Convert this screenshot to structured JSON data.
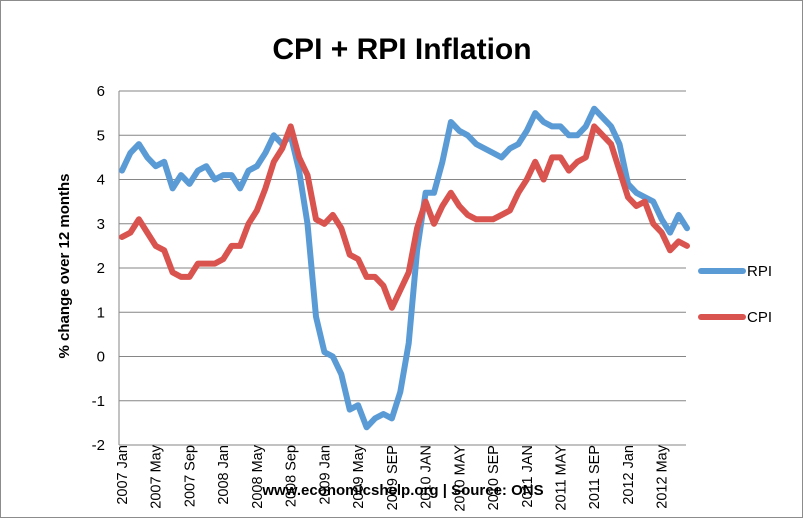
{
  "chart_data": {
    "type": "line",
    "title": "CPI + RPI Inflation",
    "ylabel": "% change over 12 months",
    "source": "www.economicshelp.org | Source: ONS",
    "ylim": [
      -2,
      6
    ],
    "yticks": [
      -2,
      -1,
      0,
      1,
      2,
      3,
      4,
      5,
      6
    ],
    "grid": true,
    "legend_position": "right",
    "x_tick_labels": [
      "2007 Jan",
      "2007 May",
      "2007 Sep",
      "2008 Jan",
      "2008 May",
      "2008 Sep",
      "2009 Jan",
      "2009 May",
      "2009 SEP",
      "2010 JAN",
      "2010 MAY",
      "2010 SEP",
      "2011 JAN",
      "2011 MAY",
      "2011 SEP",
      "2012 Jan",
      "2012 May"
    ],
    "x_start": "2007 Jan",
    "series": [
      {
        "name": "RPI",
        "color": "#5b9bd5",
        "values": [
          4.2,
          4.6,
          4.8,
          4.5,
          4.3,
          4.4,
          3.8,
          4.1,
          3.9,
          4.2,
          4.3,
          4.0,
          4.1,
          4.1,
          3.8,
          4.2,
          4.3,
          4.6,
          5.0,
          4.8,
          5.0,
          4.2,
          3.0,
          0.9,
          0.1,
          0.0,
          -0.4,
          -1.2,
          -1.1,
          -1.6,
          -1.4,
          -1.3,
          -1.4,
          -0.8,
          0.3,
          2.4,
          3.7,
          3.7,
          4.4,
          5.3,
          5.1,
          5.0,
          4.8,
          4.7,
          4.6,
          4.5,
          4.7,
          4.8,
          5.1,
          5.5,
          5.3,
          5.2,
          5.2,
          5.0,
          5.0,
          5.2,
          5.6,
          5.4,
          5.2,
          4.8,
          3.9,
          3.7,
          3.6,
          3.5,
          3.1,
          2.8,
          3.2,
          2.9
        ]
      },
      {
        "name": "CPI",
        "color": "#d9534f",
        "values": [
          2.7,
          2.8,
          3.1,
          2.8,
          2.5,
          2.4,
          1.9,
          1.8,
          1.8,
          2.1,
          2.1,
          2.1,
          2.2,
          2.5,
          2.5,
          3.0,
          3.3,
          3.8,
          4.4,
          4.7,
          5.2,
          4.5,
          4.1,
          3.1,
          3.0,
          3.2,
          2.9,
          2.3,
          2.2,
          1.8,
          1.8,
          1.6,
          1.1,
          1.5,
          1.9,
          2.9,
          3.5,
          3.0,
          3.4,
          3.7,
          3.4,
          3.2,
          3.1,
          3.1,
          3.1,
          3.2,
          3.3,
          3.7,
          4.0,
          4.4,
          4.0,
          4.5,
          4.5,
          4.2,
          4.4,
          4.5,
          5.2,
          5.0,
          4.8,
          4.2,
          3.6,
          3.4,
          3.5,
          3.0,
          2.8,
          2.4,
          2.6,
          2.5
        ]
      }
    ]
  }
}
